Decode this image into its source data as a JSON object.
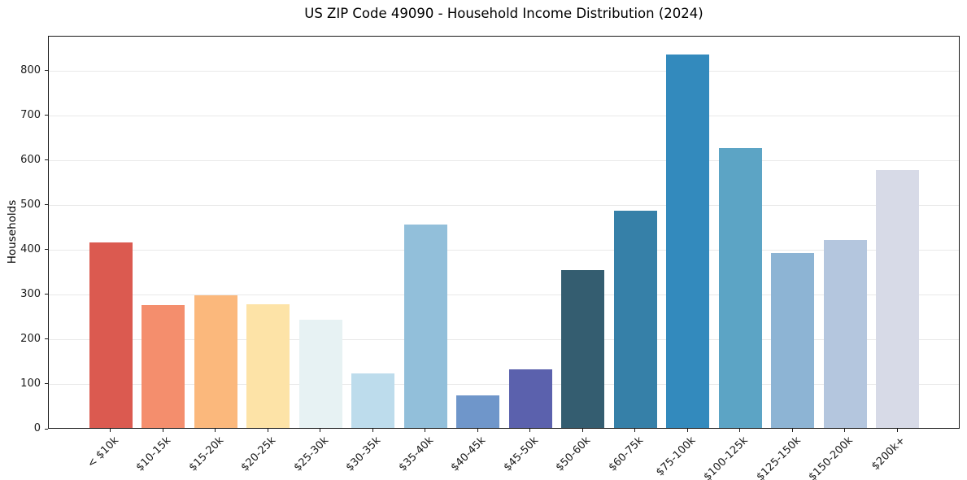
{
  "chart_data": {
    "type": "bar",
    "title": "US ZIP Code 49090 - Household Income Distribution (2024)",
    "xlabel": "",
    "ylabel": "Households",
    "categories": [
      "< $10k",
      "$10-15k",
      "$15-20k",
      "$20-25k",
      "$25-30k",
      "$30-35k",
      "$35-40k",
      "$40-45k",
      "$45-50k",
      "$50-60k",
      "$60-75k",
      "$75-100k",
      "$100-125k",
      "$125-150k",
      "$150-200k",
      "$200k+"
    ],
    "values": [
      415,
      274,
      296,
      277,
      242,
      121,
      455,
      72,
      130,
      353,
      486,
      835,
      625,
      390,
      420,
      577
    ],
    "bar_colors": [
      "#db5a50",
      "#f48e6d",
      "#fbb87c",
      "#fde3a7",
      "#e7f2f3",
      "#bddcec",
      "#92bfda",
      "#6f96ca",
      "#5b61ad",
      "#345d70",
      "#3680a8",
      "#338abd",
      "#5ca4c5",
      "#8db4d4",
      "#b4c6de",
      "#d7dae7"
    ],
    "yticks": [
      0,
      100,
      200,
      300,
      400,
      500,
      600,
      700,
      800
    ],
    "ylim": [
      0,
      878
    ],
    "grid": "horizontal",
    "legend": "none",
    "x_tick_rotation_deg": 45
  },
  "style": {
    "gridline_color": "#e9e9e9",
    "spine_color": "#1a1a1a",
    "tick_label_color": "#1a1a1a",
    "background": "#ffffff"
  }
}
